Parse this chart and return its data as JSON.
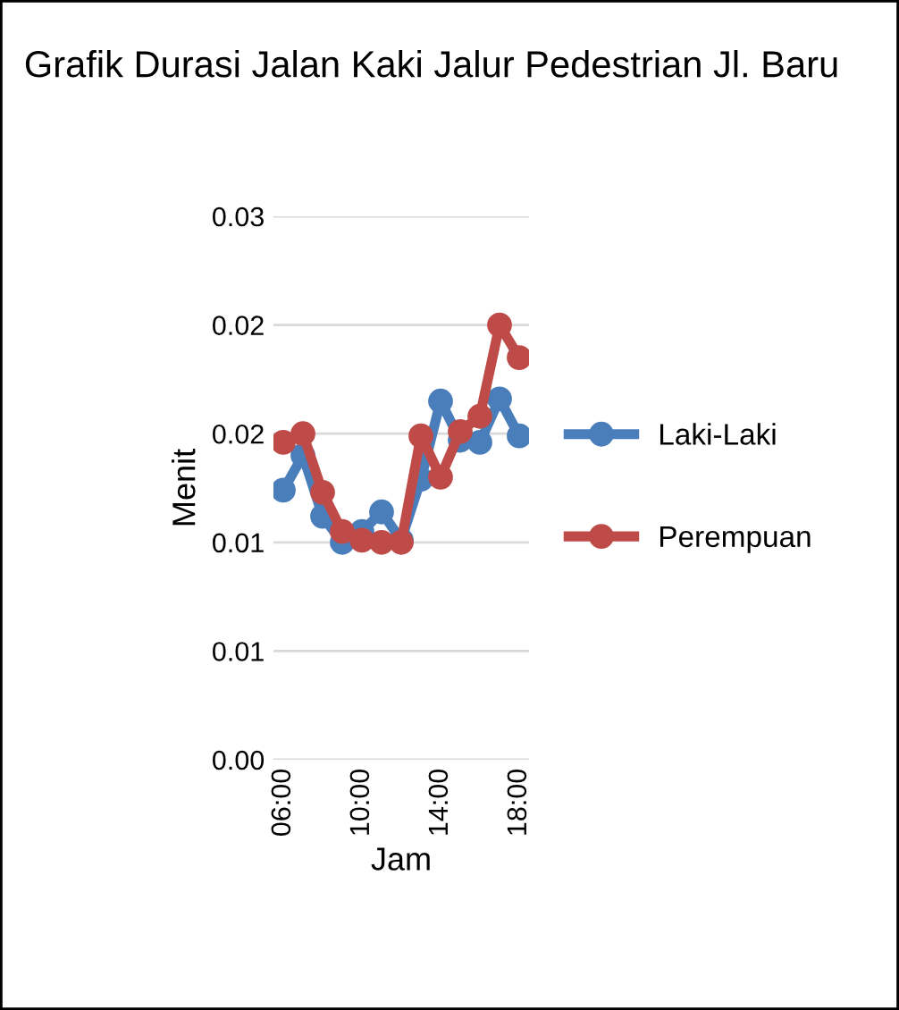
{
  "chart_data": {
    "type": "line",
    "title": "Grafik Durasi Jalan Kaki Jalur Pedestrian Jl. Baru",
    "xlabel": "Jam",
    "ylabel": "Menit",
    "x": [
      6,
      7,
      8,
      9,
      10,
      11,
      12,
      13,
      14,
      15,
      16,
      17,
      18
    ],
    "xlim": [
      5.5,
      18.5
    ],
    "xticks": [
      {
        "value": 6,
        "label": "06:00"
      },
      {
        "value": 10,
        "label": "10:00"
      },
      {
        "value": 14,
        "label": "14:00"
      },
      {
        "value": 18,
        "label": "18:00"
      }
    ],
    "ylim": [
      0,
      0.025
    ],
    "yticks": [
      {
        "value": 0,
        "label": "0.00"
      },
      {
        "value": 0.005,
        "label": "0.01"
      },
      {
        "value": 0.01,
        "label": "0.01"
      },
      {
        "value": 0.015,
        "label": "0.02"
      },
      {
        "value": 0.02,
        "label": "0.02"
      },
      {
        "value": 0.025,
        "label": "0.03"
      }
    ],
    "series": [
      {
        "name": "Laki-Laki",
        "color": "#4a7ebb",
        "values": [
          0.0124,
          0.014,
          0.0112,
          0.01,
          0.0105,
          0.0114,
          0.0101,
          0.0129,
          0.0165,
          0.0147,
          0.0146,
          0.0166,
          0.0149
        ]
      },
      {
        "name": "Perempuan",
        "color": "#be4b48",
        "values": [
          0.0146,
          0.015,
          0.0123,
          0.0105,
          0.0101,
          0.01,
          0.01,
          0.0149,
          0.013,
          0.0151,
          0.0158,
          0.02,
          0.0185
        ]
      }
    ],
    "grid": "y",
    "legend": "right",
    "marker": "circle",
    "line_style": "solid"
  }
}
